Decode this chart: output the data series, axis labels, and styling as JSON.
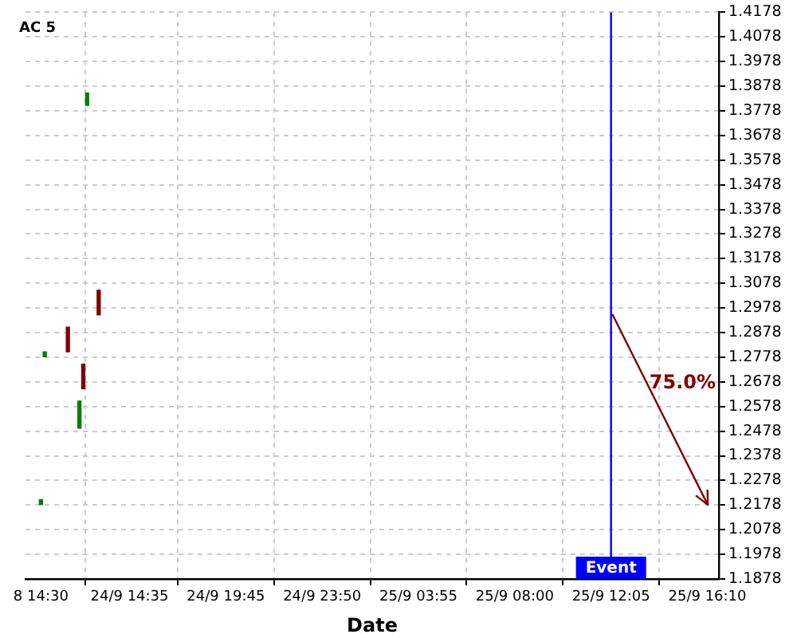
{
  "chart_data": {
    "type": "candlestick",
    "title": "AC 5",
    "xlabel": "Date",
    "categories": [
      null,
      null,
      null,
      null,
      "8 14:30",
      null,
      null,
      null,
      null,
      null,
      null,
      null,
      null,
      null,
      null,
      null,
      null,
      null,
      null,
      null,
      null,
      null,
      null,
      null,
      null,
      null,
      null,
      "24/9 14:35",
      null,
      null,
      null,
      null,
      null,
      null,
      null,
      null,
      null,
      null,
      null,
      null,
      null,
      null,
      null,
      null,
      null,
      null,
      null,
      null,
      null,
      null,
      null,
      null,
      "24/9 19:45",
      null,
      null,
      null,
      null,
      null,
      null,
      null,
      null,
      null,
      null,
      null,
      null,
      null,
      null,
      null,
      null,
      null,
      null,
      null,
      null,
      null,
      null,
      null,
      null,
      "24/9 23:50",
      null,
      null,
      null,
      null,
      null,
      null,
      null,
      null,
      null,
      null,
      null,
      null,
      null,
      null,
      null,
      null,
      null,
      null,
      null,
      null,
      null,
      null,
      null,
      null,
      "25/9 03:55",
      null,
      null,
      null,
      null,
      null,
      null,
      null,
      null,
      null,
      null,
      null,
      null,
      null,
      null,
      null,
      null,
      null,
      null,
      null,
      null,
      null,
      null,
      null,
      null,
      "25/9 08:00",
      null,
      null,
      null,
      null,
      null,
      null,
      null,
      null,
      null,
      null,
      null,
      null,
      null,
      null,
      null,
      null,
      null,
      null,
      null,
      null,
      null,
      null,
      null,
      null,
      "25/9 12:05",
      null,
      null,
      null,
      null,
      null,
      null,
      null,
      null,
      null,
      null,
      null,
      null,
      null,
      null,
      null,
      null,
      null,
      null,
      null,
      null,
      null,
      null,
      null,
      null,
      "25/9 16:10",
      null,
      null,
      null
    ],
    "ohlc": [
      null,
      null,
      null,
      null,
      [
        1.218,
        1.22,
        1.218,
        1.22
      ],
      [
        1.278,
        1.28,
        1.278,
        1.28
      ],
      null,
      null,
      null,
      null,
      null,
      [
        1.29,
        1.29,
        1.28,
        1.28
      ],
      null,
      null,
      [
        1.249,
        1.26,
        1.249,
        1.26
      ],
      [
        1.275,
        1.275,
        1.265,
        1.265
      ],
      [
        1.38,
        1.385,
        1.38,
        1.385
      ],
      null,
      null,
      [
        1.305,
        1.305,
        1.295,
        1.295
      ],
      null,
      null,
      null,
      null,
      null,
      null,
      null,
      null,
      null,
      null,
      null,
      null,
      null,
      null,
      null,
      null,
      null,
      null,
      null,
      null,
      null,
      null,
      null,
      null,
      null,
      null,
      null,
      null,
      null,
      null,
      null,
      null,
      null,
      null,
      null,
      null,
      null,
      null,
      null,
      null,
      null,
      null,
      null,
      null,
      null,
      null,
      null,
      null,
      null,
      null,
      null,
      null,
      null,
      null,
      null,
      null,
      null,
      null,
      null,
      null,
      null,
      null,
      null,
      null,
      null,
      null,
      null,
      null,
      null,
      null,
      null,
      null,
      null,
      null,
      null,
      null,
      null,
      null,
      null,
      null,
      null,
      null,
      null,
      null,
      null,
      null,
      null,
      null,
      null,
      null,
      null,
      null,
      null,
      null,
      null,
      null,
      null,
      null,
      null,
      null,
      null,
      null,
      null,
      null,
      null,
      null,
      null,
      null,
      null,
      null,
      null,
      null,
      null,
      null,
      null,
      null,
      null,
      null,
      null,
      null,
      null,
      null,
      null,
      null,
      null,
      null,
      null,
      null,
      null,
      null,
      null,
      null,
      null,
      null,
      null,
      null,
      null,
      null,
      null,
      null,
      null,
      null,
      null,
      null,
      null,
      null,
      null,
      null,
      null,
      null,
      null,
      null,
      null,
      null,
      null,
      null,
      null,
      null,
      null,
      null,
      null
    ],
    "colors": [
      null,
      null,
      null,
      null,
      "#008000",
      "#008000",
      null,
      null,
      null,
      null,
      null,
      "#800000",
      null,
      null,
      "#008000",
      "#800000",
      "#008000",
      null,
      null,
      "#800000",
      null,
      null,
      null,
      null,
      null,
      null,
      null,
      null,
      null,
      null,
      null,
      null,
      null,
      null,
      null,
      null,
      null,
      null,
      null,
      null,
      null,
      null,
      null,
      null,
      null,
      null,
      null,
      null,
      null,
      null,
      null,
      null,
      null,
      null,
      null,
      null,
      null,
      null,
      null,
      null,
      null,
      null,
      null,
      null,
      null,
      null,
      null,
      null,
      null,
      null,
      null,
      null,
      null,
      null,
      null,
      null,
      null,
      null,
      null,
      null,
      null,
      null,
      null,
      null,
      null,
      null,
      null,
      null,
      null,
      null,
      null,
      null,
      null,
      null,
      null,
      null,
      null,
      null,
      null,
      null,
      null,
      null,
      null,
      null,
      null,
      null,
      null,
      null,
      null,
      null,
      null,
      null,
      null,
      null,
      null,
      null,
      null,
      null,
      null,
      null,
      null,
      null,
      null,
      null,
      null,
      null,
      null,
      null,
      null,
      null,
      null,
      null,
      null,
      null,
      null,
      null,
      null,
      null,
      null,
      null,
      null,
      null,
      null,
      null,
      null,
      null,
      null,
      null,
      null,
      null,
      null,
      null,
      null,
      null,
      null,
      null,
      null,
      null,
      null,
      null,
      null,
      null,
      null,
      null,
      null,
      null,
      null,
      null,
      null,
      null,
      null,
      null,
      null,
      null,
      null,
      null,
      null,
      null,
      null,
      null,
      null
    ],
    "ylim": [
      1.1878,
      1.4178
    ],
    "yticks": [
      1.1878,
      1.1978,
      1.2078,
      1.2178,
      1.2278,
      1.2378,
      1.2478,
      1.2578,
      1.2678,
      1.2778,
      1.2878,
      1.2978,
      1.3078,
      1.3178,
      1.3278,
      1.3378,
      1.3478,
      1.3578,
      1.3678,
      1.3778,
      1.3878,
      1.3978,
      1.4078,
      1.4178
    ],
    "ref_lines": [
      {
        "axis": "x",
        "value": "25/9 12:05",
        "label": "Event",
        "color": "#0000ff"
      }
    ],
    "annotations": [
      "75.0%"
    ],
    "grid": true,
    "legend": false
  }
}
